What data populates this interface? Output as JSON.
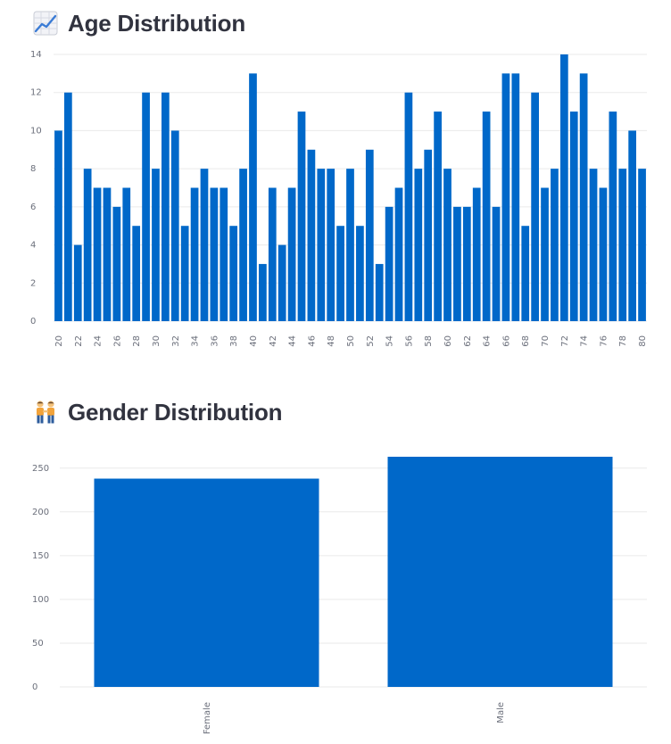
{
  "sections": [
    {
      "title": "Age Distribution",
      "icon": "chart-increasing-icon"
    },
    {
      "title": "Gender Distribution",
      "icon": "people-holding-hands-icon"
    }
  ],
  "colors": {
    "bar": "#0068c9",
    "grid": "#eaeaea",
    "text": "#31333f"
  },
  "chart_data": [
    {
      "type": "bar",
      "title": "Age Distribution",
      "xlabel": "",
      "ylabel": "",
      "x": [
        20,
        21,
        22,
        23,
        24,
        25,
        26,
        27,
        28,
        29,
        30,
        31,
        32,
        33,
        34,
        35,
        36,
        37,
        38,
        39,
        40,
        41,
        42,
        43,
        44,
        45,
        46,
        47,
        48,
        49,
        50,
        51,
        52,
        53,
        54,
        55,
        56,
        57,
        58,
        59,
        60,
        61,
        62,
        63,
        64,
        65,
        66,
        67,
        68,
        69,
        70,
        71,
        72,
        73,
        74,
        75,
        76,
        77,
        78,
        79,
        80
      ],
      "values": [
        10,
        12,
        4,
        8,
        7,
        7,
        6,
        7,
        5,
        12,
        8,
        12,
        10,
        5,
        7,
        8,
        7,
        7,
        5,
        8,
        13,
        3,
        7,
        4,
        7,
        11,
        9,
        8,
        8,
        5,
        8,
        5,
        9,
        3,
        6,
        7,
        12,
        8,
        9,
        11,
        8,
        6,
        6,
        7,
        11,
        6,
        13,
        13,
        5,
        12,
        7,
        8,
        14,
        11,
        13,
        8,
        7,
        11,
        8,
        10,
        8
      ],
      "x_tick_labels": [
        "20",
        "22",
        "24",
        "26",
        "28",
        "30",
        "32",
        "34",
        "36",
        "38",
        "40",
        "42",
        "44",
        "46",
        "48",
        "50",
        "52",
        "54",
        "56",
        "58",
        "60",
        "62",
        "64",
        "66",
        "68",
        "70",
        "72",
        "74",
        "76",
        "78",
        "80"
      ],
      "y_ticks": [
        0,
        2,
        4,
        6,
        8,
        10,
        12,
        14
      ],
      "ylim": [
        0,
        14
      ],
      "grid": true,
      "legend": "none"
    },
    {
      "type": "bar",
      "title": "Gender Distribution",
      "xlabel": "",
      "ylabel": "",
      "categories": [
        "Female",
        "Male"
      ],
      "values": [
        238,
        263
      ],
      "y_ticks": [
        0,
        50,
        100,
        150,
        200,
        250
      ],
      "ylim": [
        0,
        263
      ],
      "grid": true,
      "legend": "none"
    }
  ]
}
